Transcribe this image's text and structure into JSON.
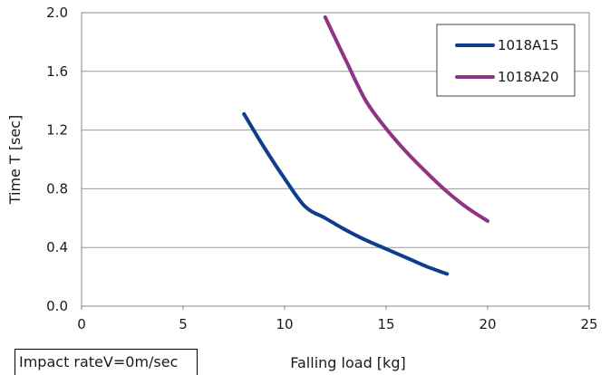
{
  "chart_data": {
    "type": "line",
    "title": "",
    "xlabel": "Falling load [kg]",
    "ylabel": "Time T [sec]",
    "xlim": [
      0,
      25
    ],
    "ylim": [
      0.0,
      2.0
    ],
    "xticks": [
      "0",
      "5",
      "10",
      "15",
      "20",
      "25"
    ],
    "yticks": [
      "0.0",
      "0.4",
      "0.8",
      "1.2",
      "1.6",
      "2.0"
    ],
    "grid": "horizontal",
    "legend_position": "top-right",
    "series": [
      {
        "name": "1018A15",
        "color": "#0e3d8c",
        "points": [
          [
            8,
            1.31
          ],
          [
            9,
            1.08
          ],
          [
            10,
            0.87
          ],
          [
            11,
            0.68
          ],
          [
            12,
            0.6
          ],
          [
            13,
            0.52
          ],
          [
            14,
            0.45
          ],
          [
            15,
            0.39
          ],
          [
            16,
            0.33
          ],
          [
            17,
            0.27
          ],
          [
            18,
            0.22
          ]
        ]
      },
      {
        "name": "1018A20",
        "color": "#8f3385",
        "points": [
          [
            12,
            1.97
          ],
          [
            13,
            1.68
          ],
          [
            14,
            1.4
          ],
          [
            15,
            1.21
          ],
          [
            16,
            1.05
          ],
          [
            17,
            0.91
          ],
          [
            18,
            0.78
          ],
          [
            19,
            0.67
          ],
          [
            20,
            0.58
          ]
        ]
      }
    ]
  },
  "note": "Impact rateV=0m/sec"
}
